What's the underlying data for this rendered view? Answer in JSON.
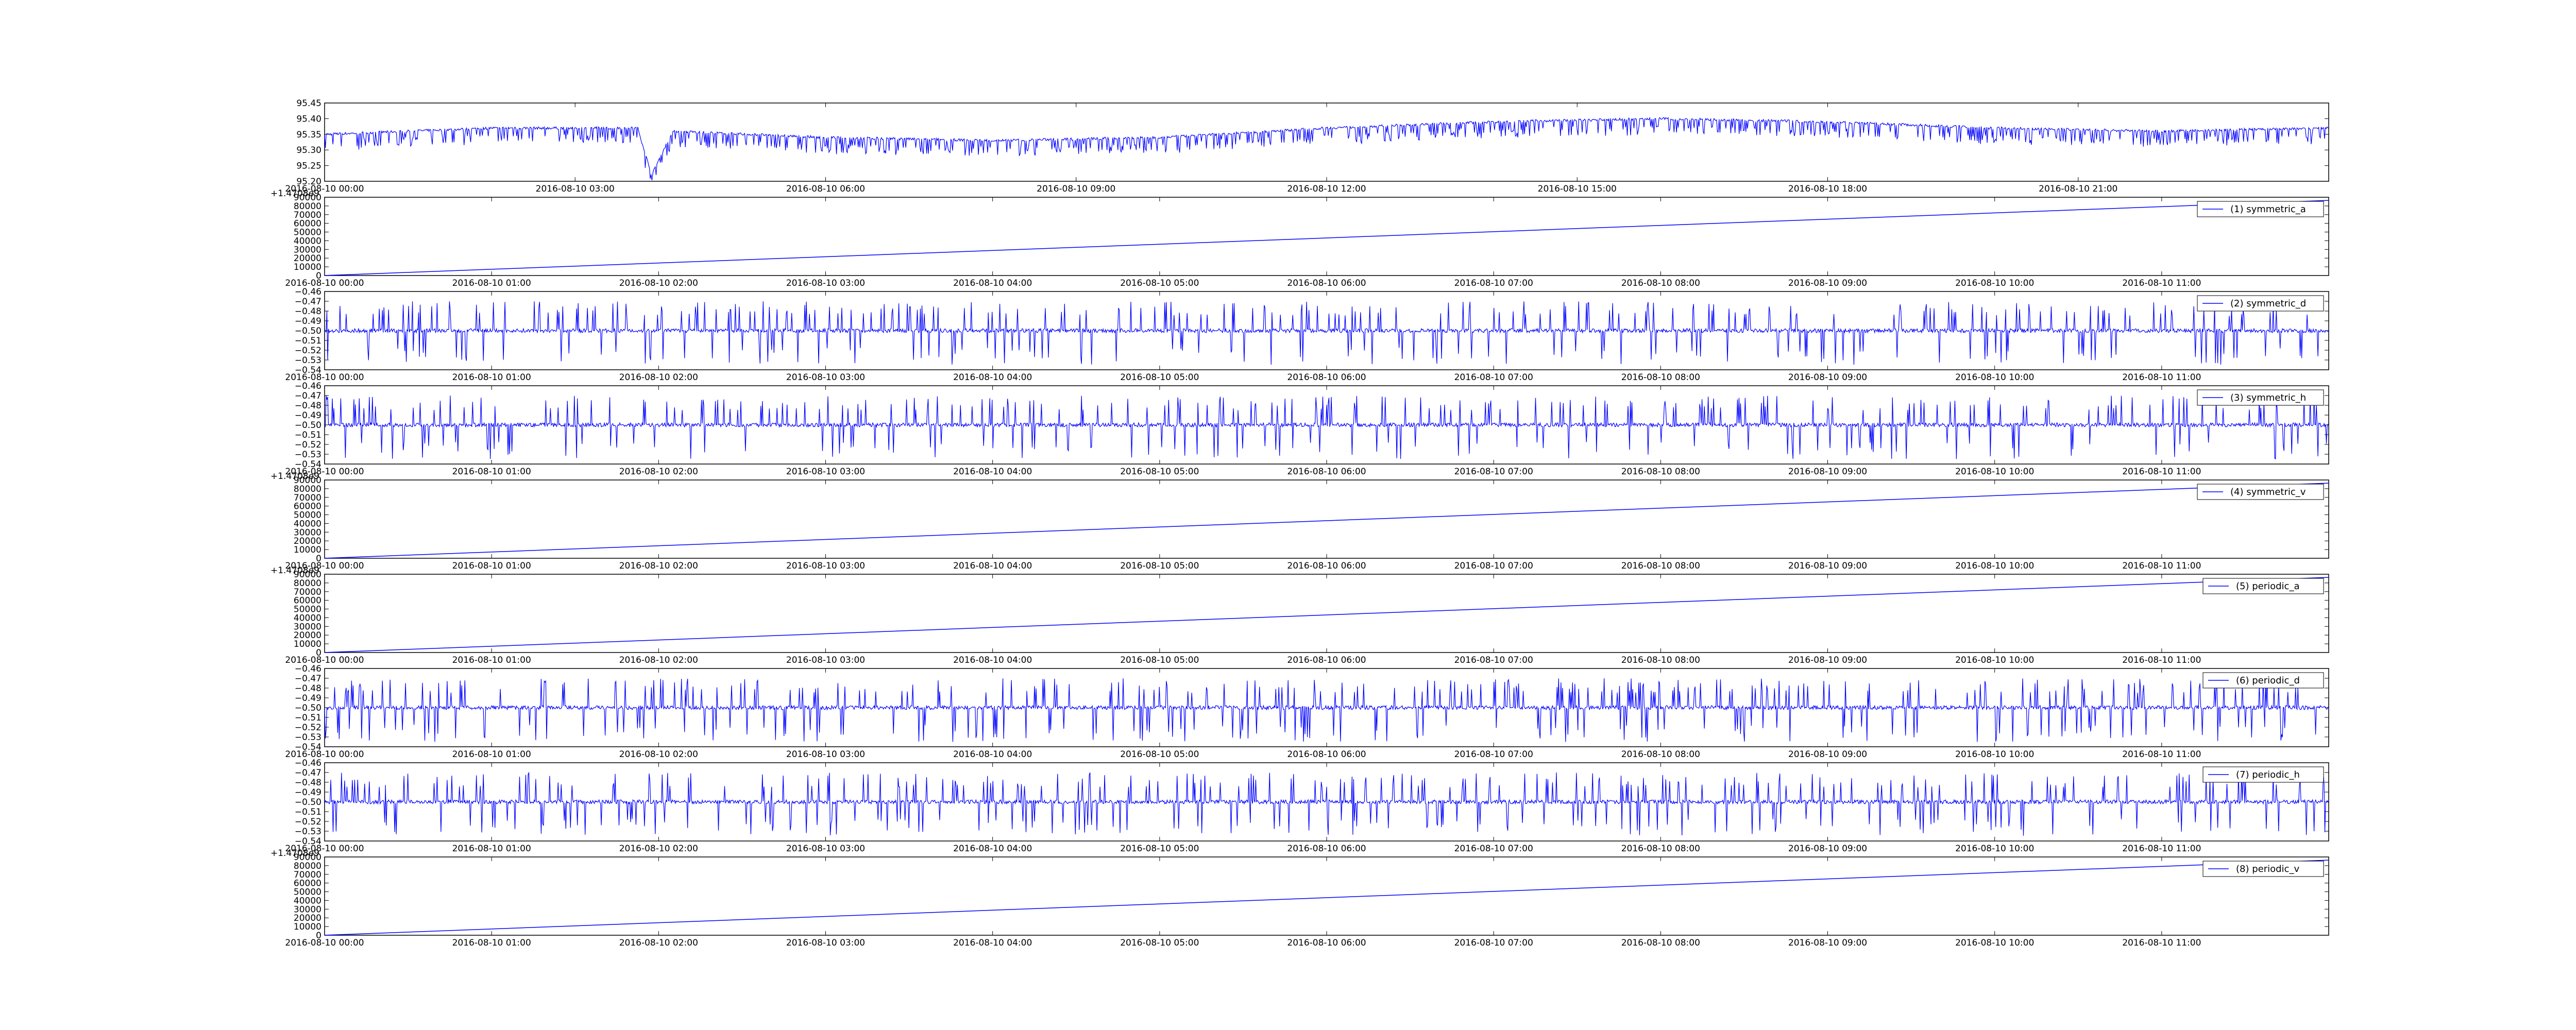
{
  "line_color": "#0000ff",
  "chart_data": [
    {
      "type": "line",
      "title": "",
      "xlabel": "",
      "ylabel": "",
      "ylim": [
        95.2,
        95.45
      ],
      "yticks": [
        "95.20",
        "95.25",
        "95.30",
        "95.35",
        "95.40",
        "95.45"
      ],
      "x_range": [
        "2016-08-10 00:00",
        "2016-08-11 00:00"
      ],
      "xticks": [
        "2016-08-10 00:00",
        "2016-08-10 03:00",
        "2016-08-10 06:00",
        "2016-08-10 09:00",
        "2016-08-10 12:00",
        "2016-08-10 15:00",
        "2016-08-10 18:00",
        "2016-08-10 21:00"
      ],
      "offset_text": "",
      "legend": null,
      "grid": false,
      "series": [
        {
          "x": [
            "2016-08-10 00:00",
            "2016-08-10 02:00",
            "2016-08-10 03:45",
            "2016-08-10 03:55",
            "2016-08-10 04:10",
            "2016-08-10 06:00",
            "2016-08-10 08:00",
            "2016-08-10 10:00",
            "2016-08-10 12:00",
            "2016-08-10 14:00",
            "2016-08-10 16:00",
            "2016-08-10 18:00",
            "2016-08-10 20:00",
            "2016-08-10 22:00",
            "2016-08-11 00:00"
          ],
          "y": [
            95.35,
            95.37,
            95.37,
            95.22,
            95.36,
            95.34,
            95.33,
            95.34,
            95.37,
            95.39,
            95.4,
            95.39,
            95.37,
            95.36,
            95.37
          ],
          "spikes_down": 0.05
        }
      ]
    },
    {
      "type": "line",
      "title": "",
      "xlabel": "",
      "ylabel": "",
      "ylim": [
        0,
        90000
      ],
      "yticks": [
        "0",
        "10000",
        "20000",
        "30000",
        "40000",
        "50000",
        "60000",
        "70000",
        "80000",
        "90000"
      ],
      "x_range": [
        "2016-08-10 00:00",
        "2016-08-10 12:00"
      ],
      "xticks": [
        "2016-08-10 00:00",
        "2016-08-10 01:00",
        "2016-08-10 02:00",
        "2016-08-10 03:00",
        "2016-08-10 04:00",
        "2016-08-10 05:00",
        "2016-08-10 06:00",
        "2016-08-10 07:00",
        "2016-08-10 08:00",
        "2016-08-10 09:00",
        "2016-08-10 10:00",
        "2016-08-10 11:00"
      ],
      "offset_text": "+1.4708e9",
      "legend": "top-right",
      "grid": false,
      "series": [
        {
          "name": "(1) symmetric_a",
          "x": [
            "2016-08-10 00:00",
            "2016-08-10 12:00"
          ],
          "y": [
            0,
            86400
          ]
        }
      ]
    },
    {
      "type": "line",
      "title": "",
      "xlabel": "",
      "ylabel": "",
      "ylim": [
        -0.54,
        -0.46
      ],
      "yticks": [
        "−0.54",
        "−0.53",
        "−0.52",
        "−0.51",
        "−0.50",
        "−0.49",
        "−0.48",
        "−0.47",
        "−0.46"
      ],
      "x_range": [
        "2016-08-10 00:00",
        "2016-08-10 12:00"
      ],
      "xticks": [
        "2016-08-10 00:00",
        "2016-08-10 01:00",
        "2016-08-10 02:00",
        "2016-08-10 03:00",
        "2016-08-10 04:00",
        "2016-08-10 05:00",
        "2016-08-10 06:00",
        "2016-08-10 07:00",
        "2016-08-10 08:00",
        "2016-08-10 09:00",
        "2016-08-10 10:00",
        "2016-08-10 11:00"
      ],
      "offset_text": "",
      "legend": "top-right",
      "grid": false,
      "series": [
        {
          "name": "(2) symmetric_d",
          "baseline": -0.5,
          "spike_up_to": -0.47,
          "spike_down_to": -0.535
        }
      ]
    },
    {
      "type": "line",
      "title": "",
      "xlabel": "",
      "ylabel": "",
      "ylim": [
        -0.54,
        -0.46
      ],
      "yticks": [
        "−0.54",
        "−0.53",
        "−0.52",
        "−0.51",
        "−0.50",
        "−0.49",
        "−0.48",
        "−0.47",
        "−0.46"
      ],
      "x_range": [
        "2016-08-10 00:00",
        "2016-08-10 12:00"
      ],
      "xticks": [
        "2016-08-10 00:00",
        "2016-08-10 01:00",
        "2016-08-10 02:00",
        "2016-08-10 03:00",
        "2016-08-10 04:00",
        "2016-08-10 05:00",
        "2016-08-10 06:00",
        "2016-08-10 07:00",
        "2016-08-10 08:00",
        "2016-08-10 09:00",
        "2016-08-10 10:00",
        "2016-08-10 11:00"
      ],
      "offset_text": "",
      "legend": "top-right",
      "grid": false,
      "series": [
        {
          "name": "(3) symmetric_h",
          "baseline": -0.5,
          "spike_up_to": -0.47,
          "spike_down_to": -0.535
        }
      ]
    },
    {
      "type": "line",
      "title": "",
      "xlabel": "",
      "ylabel": "",
      "ylim": [
        0,
        90000
      ],
      "yticks": [
        "0",
        "10000",
        "20000",
        "30000",
        "40000",
        "50000",
        "60000",
        "70000",
        "80000",
        "90000"
      ],
      "x_range": [
        "2016-08-10 00:00",
        "2016-08-10 12:00"
      ],
      "xticks": [
        "2016-08-10 00:00",
        "2016-08-10 01:00",
        "2016-08-10 02:00",
        "2016-08-10 03:00",
        "2016-08-10 04:00",
        "2016-08-10 05:00",
        "2016-08-10 06:00",
        "2016-08-10 07:00",
        "2016-08-10 08:00",
        "2016-08-10 09:00",
        "2016-08-10 10:00",
        "2016-08-10 11:00"
      ],
      "offset_text": "+1.4708e9",
      "legend": "top-right",
      "grid": false,
      "series": [
        {
          "name": "(4) symmetric_v",
          "x": [
            "2016-08-10 00:00",
            "2016-08-10 12:00"
          ],
          "y": [
            0,
            86400
          ]
        }
      ]
    },
    {
      "type": "line",
      "title": "",
      "xlabel": "",
      "ylabel": "",
      "ylim": [
        0,
        90000
      ],
      "yticks": [
        "0",
        "10000",
        "20000",
        "30000",
        "40000",
        "50000",
        "60000",
        "70000",
        "80000",
        "90000"
      ],
      "x_range": [
        "2016-08-10 00:00",
        "2016-08-10 12:00"
      ],
      "xticks": [
        "2016-08-10 00:00",
        "2016-08-10 01:00",
        "2016-08-10 02:00",
        "2016-08-10 03:00",
        "2016-08-10 04:00",
        "2016-08-10 05:00",
        "2016-08-10 06:00",
        "2016-08-10 07:00",
        "2016-08-10 08:00",
        "2016-08-10 09:00",
        "2016-08-10 10:00",
        "2016-08-10 11:00"
      ],
      "offset_text": "+1.4708e9",
      "legend": "top-right",
      "grid": false,
      "series": [
        {
          "name": "(5) periodic_a",
          "x": [
            "2016-08-10 00:00",
            "2016-08-10 12:00"
          ],
          "y": [
            0,
            86400
          ]
        }
      ]
    },
    {
      "type": "line",
      "title": "",
      "xlabel": "",
      "ylabel": "",
      "ylim": [
        -0.54,
        -0.46
      ],
      "yticks": [
        "−0.54",
        "−0.53",
        "−0.52",
        "−0.51",
        "−0.50",
        "−0.49",
        "−0.48",
        "−0.47",
        "−0.46"
      ],
      "x_range": [
        "2016-08-10 00:00",
        "2016-08-10 12:00"
      ],
      "xticks": [
        "2016-08-10 00:00",
        "2016-08-10 01:00",
        "2016-08-10 02:00",
        "2016-08-10 03:00",
        "2016-08-10 04:00",
        "2016-08-10 05:00",
        "2016-08-10 06:00",
        "2016-08-10 07:00",
        "2016-08-10 08:00",
        "2016-08-10 09:00",
        "2016-08-10 10:00",
        "2016-08-10 11:00"
      ],
      "offset_text": "",
      "legend": "top-right",
      "grid": false,
      "series": [
        {
          "name": "(6) periodic_d",
          "baseline": -0.5,
          "spike_up_to": -0.47,
          "spike_down_to": -0.535
        }
      ]
    },
    {
      "type": "line",
      "title": "",
      "xlabel": "",
      "ylabel": "",
      "ylim": [
        -0.54,
        -0.46
      ],
      "yticks": [
        "−0.54",
        "−0.53",
        "−0.52",
        "−0.51",
        "−0.50",
        "−0.49",
        "−0.48",
        "−0.47",
        "−0.46"
      ],
      "x_range": [
        "2016-08-10 00:00",
        "2016-08-10 12:00"
      ],
      "xticks": [
        "2016-08-10 00:00",
        "2016-08-10 01:00",
        "2016-08-10 02:00",
        "2016-08-10 03:00",
        "2016-08-10 04:00",
        "2016-08-10 05:00",
        "2016-08-10 06:00",
        "2016-08-10 07:00",
        "2016-08-10 08:00",
        "2016-08-10 09:00",
        "2016-08-10 10:00",
        "2016-08-10 11:00"
      ],
      "offset_text": "",
      "legend": "top-right",
      "grid": false,
      "series": [
        {
          "name": "(7) periodic_h",
          "baseline": -0.5,
          "spike_up_to": -0.47,
          "spike_down_to": -0.535
        }
      ]
    },
    {
      "type": "line",
      "title": "",
      "xlabel": "",
      "ylabel": "",
      "ylim": [
        0,
        90000
      ],
      "yticks": [
        "0",
        "10000",
        "20000",
        "30000",
        "40000",
        "50000",
        "60000",
        "70000",
        "80000",
        "90000"
      ],
      "x_range": [
        "2016-08-10 00:00",
        "2016-08-10 12:00"
      ],
      "xticks": [
        "2016-08-10 00:00",
        "2016-08-10 01:00",
        "2016-08-10 02:00",
        "2016-08-10 03:00",
        "2016-08-10 04:00",
        "2016-08-10 05:00",
        "2016-08-10 06:00",
        "2016-08-10 07:00",
        "2016-08-10 08:00",
        "2016-08-10 09:00",
        "2016-08-10 10:00",
        "2016-08-10 11:00"
      ],
      "offset_text": "+1.4708e9",
      "legend": "top-right",
      "grid": false,
      "series": [
        {
          "name": "(8) periodic_v",
          "x": [
            "2016-08-10 00:00",
            "2016-08-10 12:00"
          ],
          "y": [
            0,
            86400
          ]
        }
      ]
    }
  ]
}
